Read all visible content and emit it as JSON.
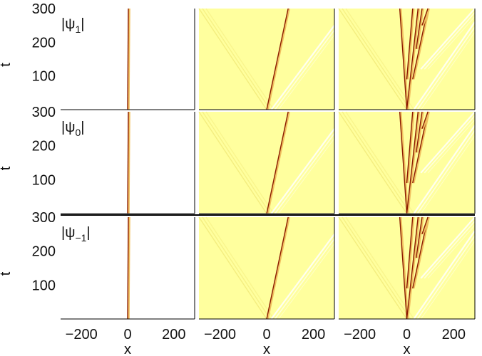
{
  "chart_data": {
    "type": "heatmap",
    "colors": {
      "background": "#ffff9e",
      "trace": "#8b1a00",
      "trace_faint": "#f0c060",
      "ripple_light": "#ffffff",
      "ripple_dark": "#f2ea7a"
    },
    "xlabel": "x",
    "ylabel": "t",
    "xlim": [
      -290,
      290
    ],
    "ylim": [
      0,
      300
    ],
    "xticks": [
      "−200",
      "0",
      "200"
    ],
    "xtick_values": [
      -200,
      0,
      200
    ],
    "yticks": [
      "100",
      "200",
      "300"
    ],
    "ytick_values": [
      100,
      200,
      300
    ],
    "row_labels": [
      {
        "base": "|ψ",
        "sub": "1",
        "close": "|"
      },
      {
        "base": "|ψ",
        "sub": "0",
        "close": "|"
      },
      {
        "base": "|ψ",
        "sub": "−1",
        "close": "|"
      }
    ],
    "columns": [
      {
        "background": false,
        "tracks": [
          {
            "x": [
              0,
              3
            ],
            "t": [
              0,
              300
            ]
          }
        ]
      },
      {
        "background": true,
        "tracks": [
          {
            "x": [
              0,
              92
            ],
            "t": [
              0,
              300
            ]
          }
        ],
        "ripples": [
          {
            "x": [
              -290,
              0
            ],
            "t": [
              300,
              0
            ],
            "kind": "dark"
          },
          {
            "x": [
              20,
              290
            ],
            "t": [
              0,
              250
            ],
            "kind": "light"
          }
        ]
      },
      {
        "background": true,
        "tracks": [
          {
            "x": [
              0,
              -30
            ],
            "t": [
              0,
              300
            ]
          },
          {
            "x": [
              0,
              48
            ],
            "t": [
              0,
              300
            ]
          },
          {
            "x": [
              0,
              25
            ],
            "t": [
              90,
              300
            ]
          },
          {
            "x": [
              25,
              90
            ],
            "t": [
              90,
              300
            ]
          },
          {
            "x": [
              40,
              65
            ],
            "t": [
              180,
              300
            ]
          },
          {
            "x": [
              65,
              90
            ],
            "t": [
              250,
              300
            ]
          }
        ],
        "ripples": [
          {
            "x": [
              -290,
              0
            ],
            "t": [
              300,
              0
            ],
            "kind": "dark"
          },
          {
            "x": [
              30,
              290
            ],
            "t": [
              0,
              260
            ],
            "kind": "light"
          },
          {
            "x": [
              60,
              290
            ],
            "t": [
              120,
              300
            ],
            "kind": "light"
          }
        ]
      }
    ]
  }
}
